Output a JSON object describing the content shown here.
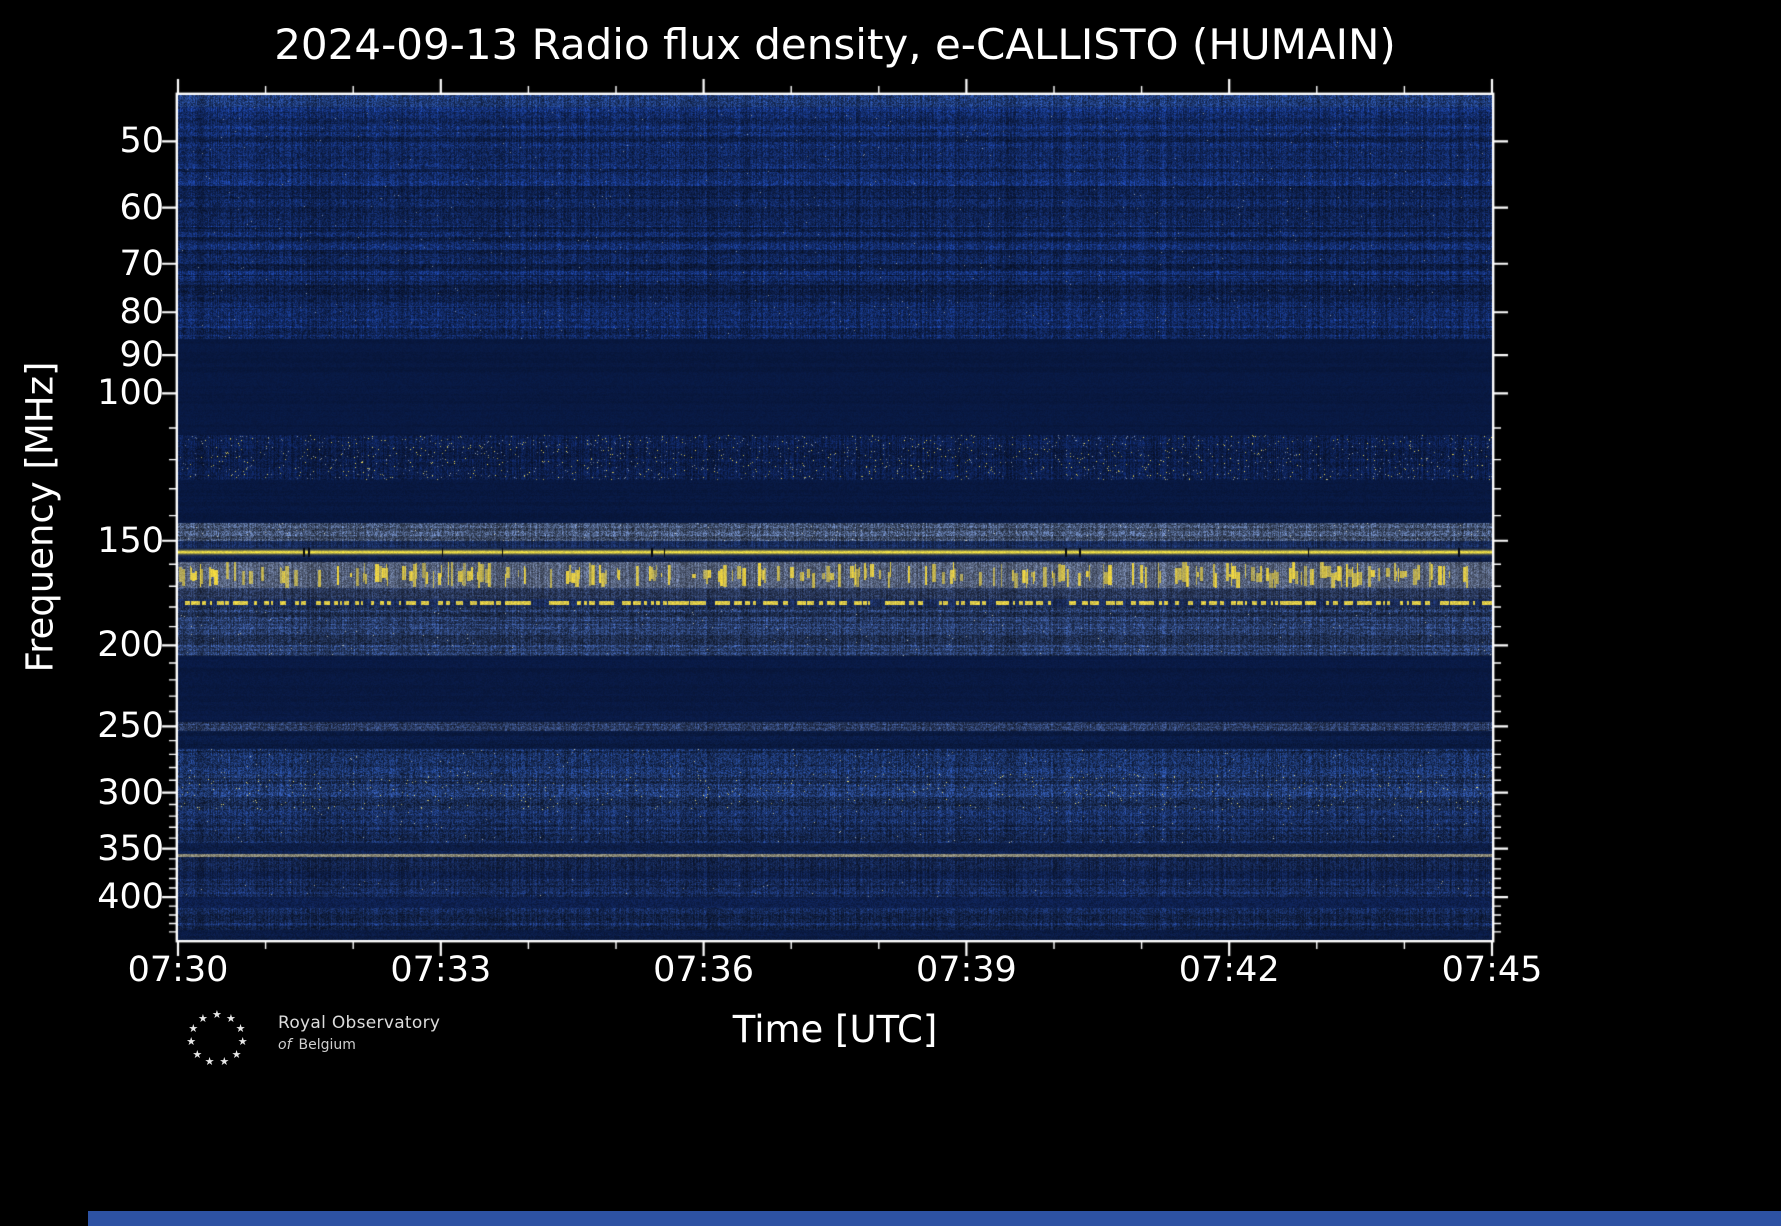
{
  "logo": {
    "line1": "Royal Observatory",
    "line2_prefix": "of",
    "line2_main": "Belgium",
    "star_glyph": "★",
    "star_count": 11
  },
  "colors": {
    "figure_background": "#000000",
    "axes_foreground": "#ffffff",
    "spectrogram_quiet": "#081840",
    "spectrogram_base": "#10265c",
    "bright_line": "#ffec46",
    "burst_yellow": "#ffe23c",
    "pale_speckle": "#cfc9a8",
    "bottom_strip": "#2d52a3"
  },
  "chart_data": {
    "type": "heatmap",
    "title": "2024-09-13 Radio flux density, e-CALLISTO (HUMAIN)",
    "xlabel": "Time [UTC]",
    "ylabel": "Frequency [MHz]",
    "date": "2024-09-13",
    "instrument": "e-CALLISTO",
    "station": "HUMAIN",
    "x_range_utc": [
      "07:30",
      "07:45"
    ],
    "x_ticks": [
      "07:30",
      "07:33",
      "07:36",
      "07:39",
      "07:42",
      "07:45"
    ],
    "x_minor_step_min": 1,
    "y_scale": "log",
    "y_range_mhz": [
      44,
      450
    ],
    "y_ticks": [
      50,
      60,
      70,
      80,
      90,
      100,
      150,
      200,
      250,
      300,
      350,
      400
    ],
    "y_minor_ticks": [
      110,
      120,
      130,
      140,
      160,
      170,
      180,
      190,
      210,
      220,
      230,
      240,
      260,
      270,
      280,
      290,
      310,
      320,
      330,
      340,
      360,
      370,
      380,
      390,
      410,
      420,
      430,
      440
    ],
    "legend": "none",
    "grid": "off",
    "features": [
      "persistent bright narrowband emission line near 155 MHz",
      "dense intermittent vertical RFI bursts between ~159 and 171 MHz",
      "dashed/dotted RFI line near 178 MHz",
      "scattered yellow RFI speckles in the 112-127 MHz band",
      "broadband quiet (dark) bands at ~86-112 MHz and ~206-247 MHz",
      "textured noisy background 266-345 MHz with brighter speckles near 300 MHz",
      "thin continuous pale line near 356 MHz",
      "faint horizontal noise striping through the 47-86 MHz band"
    ],
    "bands": [
      {
        "f0": 44,
        "f1": 45.5,
        "kind": "noise",
        "base": [
          30,
          58,
          118
        ],
        "noise": 0.45,
        "streaks": 0.2
      },
      {
        "f0": 45.5,
        "f1": 86,
        "kind": "noise",
        "base": [
          16,
          38,
          92
        ],
        "noise": 0.4,
        "streaks": 0.55,
        "speckle_prob": 0.0015,
        "speckle_color": [
          150,
          160,
          170
        ]
      },
      {
        "f0": 86,
        "f1": 112,
        "kind": "noise",
        "base": [
          8,
          24,
          64
        ],
        "noise": 0.1,
        "streaks": 0.1
      },
      {
        "f0": 112,
        "f1": 127,
        "kind": "noise",
        "base": [
          12,
          30,
          76
        ],
        "noise": 0.35,
        "streaks": 0.2,
        "speckle_prob": 0.01,
        "speckle_color": [
          255,
          232,
          90
        ],
        "speckle2_prob": 0.012,
        "speckle2_color": [
          170,
          180,
          190
        ]
      },
      {
        "f0": 127,
        "f1": 143,
        "kind": "noise",
        "base": [
          8,
          24,
          64
        ],
        "noise": 0.12,
        "streaks": 0.1
      },
      {
        "f0": 143,
        "f1": 150,
        "kind": "noise",
        "base": [
          66,
          82,
          114
        ],
        "noise": 0.5,
        "streaks": 0.4,
        "speckle_prob": 0.004,
        "speckle_color": [
          220,
          220,
          200
        ]
      },
      {
        "f0": 150,
        "f1": 153,
        "kind": "noise",
        "base": [
          24,
          44,
          92
        ],
        "noise": 0.3,
        "streaks": 0.3
      },
      {
        "f0": 153,
        "f1": 157,
        "kind": "line",
        "base": [
          20,
          36,
          80
        ],
        "line_color": [
          255,
          236,
          70
        ],
        "noise": 0.15
      },
      {
        "f0": 157,
        "f1": 159,
        "kind": "noise",
        "base": [
          14,
          30,
          72
        ],
        "noise": 0.25,
        "streaks": 0.2
      },
      {
        "f0": 159,
        "f1": 171,
        "kind": "bursts",
        "base": [
          84,
          96,
          122
        ],
        "noise": 0.35,
        "burst_color": [
          255,
          226,
          60
        ]
      },
      {
        "f0": 171,
        "f1": 176,
        "kind": "noise",
        "base": [
          46,
          62,
          100
        ],
        "noise": 0.4,
        "streaks": 0.3
      },
      {
        "f0": 176,
        "f1": 180,
        "kind": "dashes",
        "base": [
          26,
          44,
          90
        ],
        "dash_color": [
          255,
          230,
          70
        ],
        "noise": 0.3
      },
      {
        "f0": 180,
        "f1": 206,
        "kind": "noise",
        "base": [
          38,
          58,
          102
        ],
        "noise": 0.45,
        "streaks": 0.5,
        "speckle_prob": 0.002,
        "speckle_color": [
          200,
          200,
          180
        ]
      },
      {
        "f0": 206,
        "f1": 247,
        "kind": "noise",
        "base": [
          9,
          25,
          66
        ],
        "noise": 0.12,
        "streaks": 0.15
      },
      {
        "f0": 247,
        "f1": 253,
        "kind": "noise",
        "base": [
          44,
          62,
          104
        ],
        "noise": 0.5,
        "streaks": 0.3
      },
      {
        "f0": 253,
        "f1": 266,
        "kind": "noise",
        "base": [
          10,
          27,
          68
        ],
        "noise": 0.18,
        "streaks": 0.2
      },
      {
        "f0": 266,
        "f1": 285,
        "kind": "noise",
        "base": [
          24,
          46,
          94
        ],
        "noise": 0.5,
        "streaks": 0.45,
        "speckle_prob": 0.003,
        "speckle_color": [
          215,
          210,
          170
        ]
      },
      {
        "f0": 285,
        "f1": 315,
        "kind": "noise",
        "base": [
          28,
          50,
          98
        ],
        "noise": 0.5,
        "streaks": 0.45,
        "speckle_prob": 0.008,
        "speckle_color": [
          250,
          235,
          120
        ]
      },
      {
        "f0": 315,
        "f1": 345,
        "kind": "noise",
        "base": [
          23,
          44,
          92
        ],
        "noise": 0.45,
        "streaks": 0.4,
        "speckle_prob": 0.002,
        "speckle_color": [
          200,
          200,
          170
        ]
      },
      {
        "f0": 345,
        "f1": 355,
        "kind": "noise",
        "base": [
          14,
          32,
          76
        ],
        "noise": 0.25,
        "streaks": 0.25
      },
      {
        "f0": 355,
        "f1": 358,
        "kind": "noise",
        "base": [
          132,
          130,
          112
        ],
        "noise": 0.25,
        "streaks": 0.1
      },
      {
        "f0": 358,
        "f1": 372,
        "kind": "noise",
        "base": [
          22,
          42,
          90
        ],
        "noise": 0.4,
        "streaks": 0.4
      },
      {
        "f0": 372,
        "f1": 380,
        "kind": "noise",
        "base": [
          15,
          33,
          78
        ],
        "noise": 0.3,
        "streaks": 0.3
      },
      {
        "f0": 380,
        "f1": 400,
        "kind": "noise",
        "base": [
          22,
          42,
          90
        ],
        "noise": 0.42,
        "streaks": 0.4,
        "speckle_prob": 0.0015,
        "speckle_color": [
          200,
          195,
          160
        ]
      },
      {
        "f0": 400,
        "f1": 412,
        "kind": "noise",
        "base": [
          13,
          30,
          74
        ],
        "noise": 0.25,
        "streaks": 0.25
      },
      {
        "f0": 412,
        "f1": 438,
        "kind": "noise",
        "base": [
          21,
          41,
          88
        ],
        "noise": 0.42,
        "streaks": 0.45
      },
      {
        "f0": 438,
        "f1": 450,
        "kind": "noise",
        "base": [
          11,
          28,
          70
        ],
        "noise": 0.2,
        "streaks": 0.2
      }
    ]
  }
}
